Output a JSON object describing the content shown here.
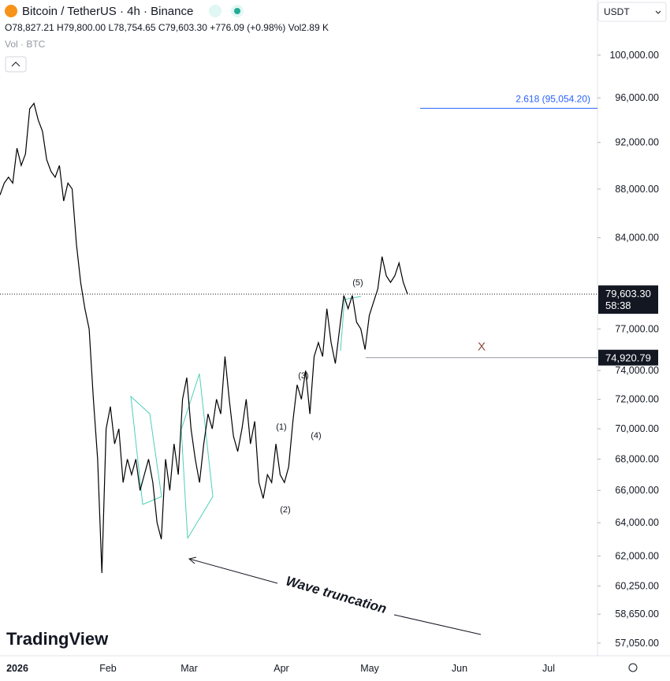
{
  "header": {
    "symbol": "Bitcoin / TetherUS · 4h · Binance",
    "ohlc": "O78,827.21 H79,800.00 L78,754.65 C79,603.30 +776.09 (+0.98%) Vol2.89 K",
    "volume": "Vol · BTC",
    "currency": "USDT",
    "logo": "TradingView"
  },
  "chart_data": {
    "type": "line",
    "log_scale": true,
    "color": "#000000",
    "values": [
      87500,
      88500,
      89000,
      88500,
      91500,
      90000,
      91000,
      95000,
      95500,
      94000,
      93000,
      90500,
      89500,
      89000,
      90000,
      87000,
      88500,
      88000,
      83500,
      80500,
      78500,
      77000,
      72000,
      68000,
      61000,
      70000,
      71500,
      69000,
      70000,
      66500,
      68000,
      67000,
      68000,
      66000,
      67000,
      68000,
      66500,
      64000,
      63000,
      68000,
      66000,
      69000,
      67000,
      72000,
      73500,
      70000,
      68000,
      66500,
      69000,
      71000,
      70000,
      72000,
      71000,
      75000,
      72000,
      69500,
      68500,
      70000,
      72000,
      69000,
      70500,
      66500,
      65500,
      67000,
      66500,
      69000,
      67000,
      66500,
      67500,
      70500,
      73000,
      72000,
      74000,
      71000,
      75000,
      76000,
      75000,
      78500,
      76000,
      74500,
      77000,
      79500,
      78500,
      79500,
      77500,
      77000,
      75500,
      78000,
      79000,
      80000,
      82500,
      81000,
      80500,
      81000,
      82000,
      80500,
      79603.3
    ],
    "ylim": [
      56450,
      105400
    ],
    "yticks": [
      {
        "value": 100000,
        "label": "100,000.00"
      },
      {
        "value": 96000,
        "label": "96,000.00"
      },
      {
        "value": 92000,
        "label": "92,000.00"
      },
      {
        "value": 88000,
        "label": "88,000.00"
      },
      {
        "value": 84000,
        "label": "84,000.00"
      },
      {
        "value": 77000,
        "label": "77,000.00"
      },
      {
        "value": 74000,
        "label": "74,000.00"
      },
      {
        "value": 72000,
        "label": "72,000.00"
      },
      {
        "value": 70000,
        "label": "70,000.00"
      },
      {
        "value": 68000,
        "label": "68,000.00"
      },
      {
        "value": 66000,
        "label": "66,000.00"
      },
      {
        "value": 64000,
        "label": "64,000.00"
      },
      {
        "value": 62000,
        "label": "62,000.00"
      },
      {
        "value": 60250,
        "label": "60,250.00"
      },
      {
        "value": 58650,
        "label": "58,650.00"
      },
      {
        "value": 57050,
        "label": "57,050.00"
      }
    ],
    "x_labels": [
      "2026",
      "Feb",
      "Mar",
      "Apr",
      "May",
      "Jun",
      "Jul"
    ],
    "price_line": {
      "value": 79603.3,
      "label": "79,603.30",
      "countdown": "58:38"
    },
    "target_line": {
      "value": 95054.2,
      "label": "2.618 (95,054.20)",
      "color": "#2962ff"
    },
    "level_line": {
      "value": 74920.79,
      "label": "74,920.79",
      "marker": "X"
    },
    "annotations": {
      "waves": [
        "(1)",
        "(2)",
        "(3)",
        "(4)",
        "(5)"
      ],
      "note": "Wave truncation"
    }
  }
}
